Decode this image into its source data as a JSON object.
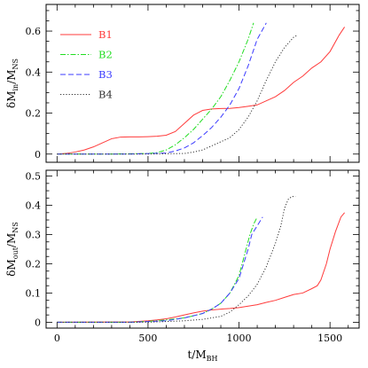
{
  "chart_data": {
    "type": "line",
    "x_axis": {
      "label_main": "t/M",
      "label_sub": "BH",
      "xlim": [
        -60,
        1660
      ],
      "ticks": [
        0,
        500,
        1000,
        1500
      ],
      "tick_labels": [
        "0",
        "500",
        "1000",
        "1500"
      ]
    },
    "series_styles": [
      {
        "name": "B1",
        "color": "#ff3b3b",
        "dash": ""
      },
      {
        "name": "B2",
        "color": "#22dd22",
        "dash": "6 2 1.5 2"
      },
      {
        "name": "B3",
        "color": "#3b3bff",
        "dash": "6 3"
      },
      {
        "name": "B4",
        "color": "#333333",
        "dash": "1.2 2"
      }
    ],
    "panels": [
      {
        "ylabel_main": "δM",
        "ylabel_sub1": "in",
        "ylabel_mid": "/M",
        "ylabel_sub2": "NS",
        "ylim": [
          -0.04,
          0.73
        ],
        "yticks": [
          0,
          0.2,
          0.4,
          0.6
        ],
        "ytick_labels": [
          "0",
          "0.2",
          "0.4",
          "0.6"
        ],
        "legend_position": "top-left",
        "series": [
          {
            "name": "B1",
            "x": [
              0,
              50,
              100,
              150,
              200,
              250,
              300,
              350,
              400,
              450,
              500,
              550,
              600,
              650,
              700,
              750,
              800,
              850,
              900,
              950,
              1000,
              1050,
              1100,
              1150,
              1200,
              1250,
              1300,
              1350,
              1400,
              1450,
              1500,
              1550,
              1580
            ],
            "y": [
              0.0,
              0.003,
              0.01,
              0.02,
              0.035,
              0.055,
              0.075,
              0.083,
              0.084,
              0.084,
              0.085,
              0.087,
              0.092,
              0.11,
              0.15,
              0.19,
              0.213,
              0.22,
              0.222,
              0.223,
              0.227,
              0.233,
              0.24,
              0.26,
              0.28,
              0.31,
              0.35,
              0.38,
              0.42,
              0.45,
              0.5,
              0.58,
              0.62
            ]
          },
          {
            "name": "B2",
            "x": [
              0,
              300,
              500,
              550,
              600,
              650,
              700,
              750,
              800,
              850,
              900,
              950,
              1000,
              1050,
              1080
            ],
            "y": [
              0,
              0.0,
              0.003,
              0.007,
              0.02,
              0.045,
              0.08,
              0.12,
              0.17,
              0.22,
              0.28,
              0.36,
              0.45,
              0.56,
              0.64
            ]
          },
          {
            "name": "B3",
            "x": [
              0,
              400,
              600,
              650,
              700,
              750,
              800,
              850,
              900,
              950,
              1000,
              1050,
              1100,
              1150
            ],
            "y": [
              0,
              0.0,
              0.005,
              0.015,
              0.03,
              0.055,
              0.09,
              0.13,
              0.18,
              0.24,
              0.32,
              0.43,
              0.56,
              0.64
            ]
          },
          {
            "name": "B4",
            "x": [
              0,
              500,
              700,
              750,
              800,
              850,
              900,
              950,
              1000,
              1050,
              1100,
              1150,
              1200,
              1250,
              1300,
              1320
            ],
            "y": [
              0,
              0.0,
              0.003,
              0.01,
              0.02,
              0.04,
              0.06,
              0.08,
              0.12,
              0.18,
              0.26,
              0.36,
              0.45,
              0.52,
              0.57,
              0.58
            ]
          }
        ]
      },
      {
        "ylabel_main": "δM",
        "ylabel_sub1": "out",
        "ylabel_mid": "/M",
        "ylabel_sub2": "NS",
        "ylim": [
          -0.02,
          0.52
        ],
        "yticks": [
          0,
          0.1,
          0.2,
          0.3,
          0.4,
          0.5
        ],
        "ytick_labels": [
          "0",
          "0.1",
          "0.2",
          "0.3",
          "0.4",
          "0.5"
        ],
        "series": [
          {
            "name": "B1",
            "x": [
              0,
              400,
              500,
              550,
              600,
              650,
              700,
              750,
              800,
              850,
              900,
              950,
              1000,
              1050,
              1100,
              1150,
              1200,
              1250,
              1300,
              1350,
              1400,
              1430,
              1450,
              1480,
              1500,
              1530,
              1560,
              1580
            ],
            "y": [
              0,
              0.001,
              0.005,
              0.008,
              0.012,
              0.018,
              0.025,
              0.032,
              0.038,
              0.042,
              0.045,
              0.047,
              0.05,
              0.055,
              0.06,
              0.068,
              0.075,
              0.085,
              0.095,
              0.1,
              0.115,
              0.125,
              0.145,
              0.2,
              0.25,
              0.31,
              0.36,
              0.375
            ]
          },
          {
            "name": "B2",
            "x": [
              0,
              400,
              500,
              600,
              700,
              750,
              800,
              850,
              900,
              950,
              1000,
              1030,
              1060,
              1080,
              1100
            ],
            "y": [
              0,
              0.0,
              0.003,
              0.008,
              0.015,
              0.022,
              0.03,
              0.045,
              0.065,
              0.1,
              0.16,
              0.23,
              0.3,
              0.335,
              0.36
            ]
          },
          {
            "name": "B3",
            "x": [
              0,
              400,
              600,
              700,
              800,
              850,
              900,
              950,
              1000,
              1050,
              1070,
              1100,
              1130
            ],
            "y": [
              0,
              0.0,
              0.005,
              0.015,
              0.03,
              0.045,
              0.065,
              0.1,
              0.15,
              0.25,
              0.3,
              0.33,
              0.36
            ]
          },
          {
            "name": "B4",
            "x": [
              0,
              500,
              700,
              800,
              900,
              950,
              1000,
              1050,
              1100,
              1150,
              1200,
              1230,
              1250,
              1270,
              1290,
              1310
            ],
            "y": [
              0,
              0.0,
              0.005,
              0.01,
              0.02,
              0.035,
              0.06,
              0.09,
              0.13,
              0.19,
              0.27,
              0.33,
              0.39,
              0.42,
              0.43,
              0.43
            ]
          }
        ]
      }
    ]
  }
}
